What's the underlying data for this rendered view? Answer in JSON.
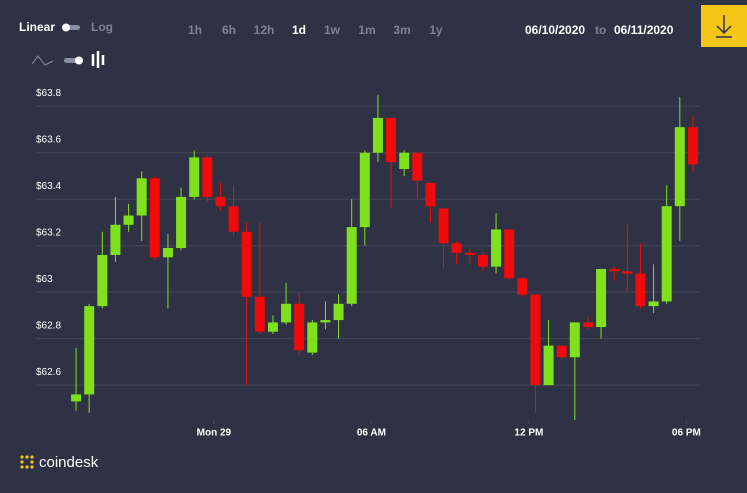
{
  "controls": {
    "linear": "Linear",
    "log": "Log",
    "ranges": [
      "1h",
      "6h",
      "12h",
      "1d",
      "1w",
      "1m",
      "3m",
      "1y"
    ],
    "selected_range": "1d",
    "date_from": "06/10/2020",
    "date_sep": "to",
    "date_to": "06/11/2020"
  },
  "brand": "coindesk",
  "chart_data": {
    "type": "candlestick",
    "up_color": "#7fe01c",
    "down_color": "#f00a0a",
    "grid": true,
    "xlim": [
      -0.5,
      47.5
    ],
    "xticks": [
      {
        "value": 10.5,
        "label": "Mon 29"
      },
      {
        "value": 22.5,
        "label": "06 AM"
      },
      {
        "value": 34.5,
        "label": "12 PM"
      },
      {
        "value": 46.5,
        "label": "06 PM"
      }
    ],
    "ylim": [
      62.45,
      63.87
    ],
    "yticks": [
      {
        "value": 62.6,
        "label": "$62.6"
      },
      {
        "value": 62.8,
        "label": "$62.8"
      },
      {
        "value": 63,
        "label": "$63"
      },
      {
        "value": 63.2,
        "label": "$63.2"
      },
      {
        "value": 63.4,
        "label": "$63.4"
      },
      {
        "value": 63.6,
        "label": "$63.6"
      },
      {
        "value": 63.8,
        "label": "$63.8"
      }
    ],
    "open": [
      62.53,
      62.56,
      62.94,
      63.16,
      63.29,
      63.33,
      63.49,
      63.15,
      63.19,
      63.41,
      63.58,
      63.41,
      63.37,
      63.26,
      62.98,
      62.83,
      62.87,
      62.95,
      62.74,
      62.87,
      62.88,
      62.95,
      63.28,
      63.6,
      63.75,
      63.53,
      63.6,
      63.47,
      63.36,
      63.21,
      63.17,
      63.16,
      63.11,
      63.27,
      63.06,
      62.99,
      62.6,
      62.77,
      62.72,
      62.87,
      62.85,
      63.1,
      63.09,
      63.08,
      62.94,
      62.96,
      63.37,
      63.71
    ],
    "high": [
      62.76,
      62.95,
      63.26,
      63.41,
      63.38,
      63.52,
      63.5,
      63.25,
      63.45,
      63.61,
      63.59,
      63.47,
      63.46,
      63.3,
      63.3,
      62.9,
      63.04,
      63.0,
      62.88,
      62.96,
      62.99,
      63.4,
      63.61,
      63.85,
      63.75,
      63.61,
      63.6,
      63.47,
      63.36,
      63.22,
      63.19,
      63.17,
      63.34,
      63.27,
      63.06,
      62.99,
      62.88,
      62.77,
      62.87,
      62.9,
      63.1,
      63.11,
      63.29,
      63.21,
      63.12,
      63.46,
      63.84,
      63.76
    ],
    "low": [
      62.49,
      62.48,
      62.93,
      63.13,
      63.26,
      63.22,
      63.14,
      62.93,
      63.18,
      63.4,
      63.39,
      63.35,
      63.24,
      62.6,
      62.82,
      62.82,
      62.86,
      62.73,
      62.73,
      62.84,
      62.8,
      62.94,
      63.2,
      63.56,
      63.36,
      63.5,
      63.4,
      63.3,
      63.1,
      63.12,
      63.12,
      63.09,
      63.08,
      63.05,
      62.98,
      62.48,
      62.6,
      62.71,
      62.45,
      62.84,
      62.8,
      63.05,
      63.0,
      62.93,
      62.91,
      62.95,
      63.22,
      63.52
    ],
    "close": [
      62.56,
      62.94,
      63.16,
      63.29,
      63.33,
      63.49,
      63.15,
      63.19,
      63.41,
      63.58,
      63.41,
      63.37,
      63.26,
      62.98,
      62.83,
      62.87,
      62.95,
      62.75,
      62.87,
      62.88,
      62.95,
      63.28,
      63.6,
      63.75,
      63.56,
      63.6,
      63.48,
      63.37,
      63.21,
      63.17,
      63.16,
      63.11,
      63.27,
      63.06,
      62.99,
      62.6,
      62.77,
      62.72,
      62.87,
      62.85,
      63.1,
      63.09,
      63.08,
      62.94,
      62.96,
      63.37,
      63.71,
      63.55
    ]
  }
}
